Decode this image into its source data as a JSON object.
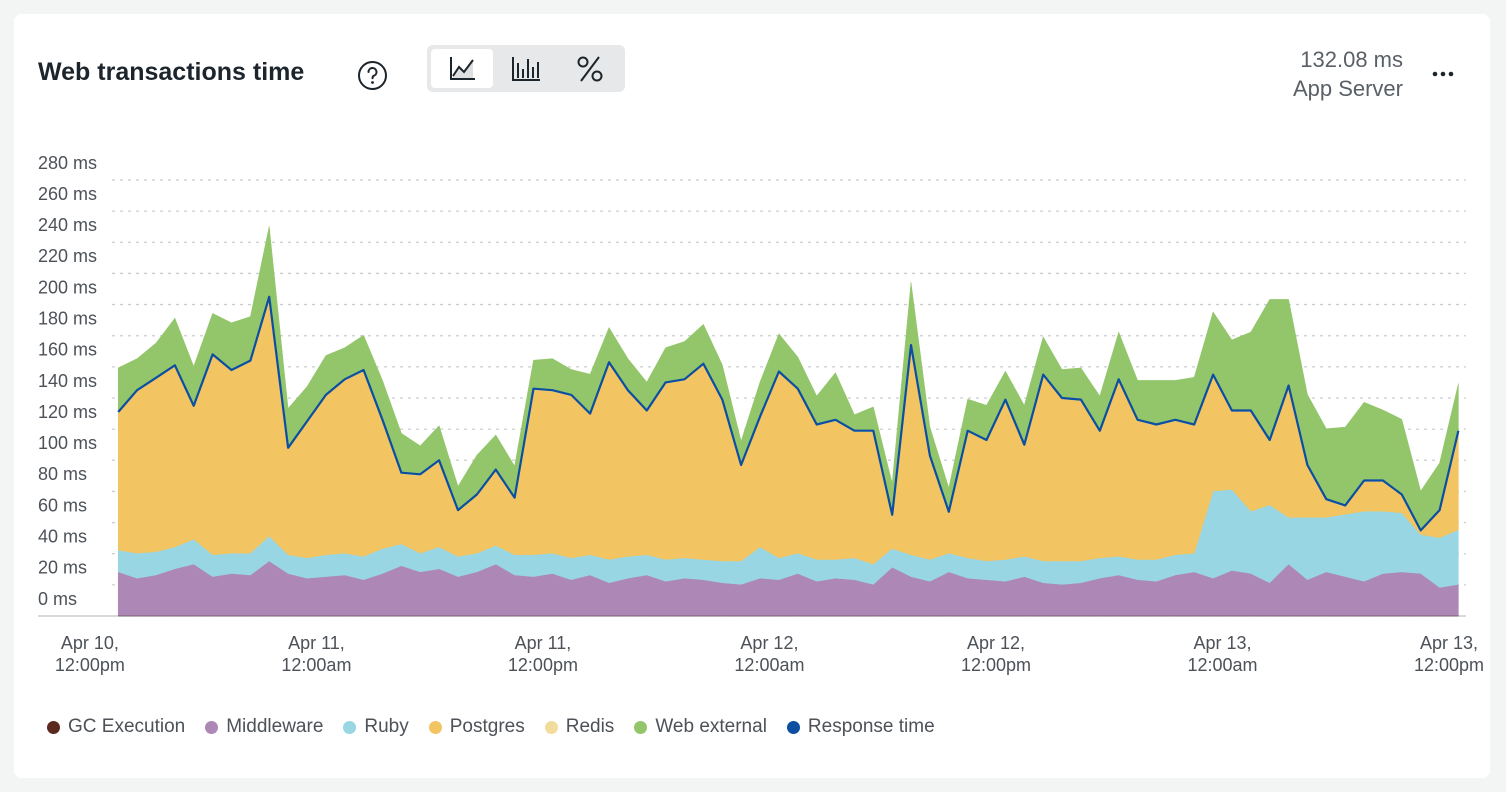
{
  "header": {
    "summary_value": "132.08 ms",
    "summary_label": "App Server"
  },
  "chart_data": {
    "type": "area",
    "stacked": true,
    "title": "Web transactions time",
    "x": [
      1.5,
      2.5,
      3.5,
      4.5,
      5.5,
      6.5,
      7.5,
      8.5,
      9.5,
      10.5,
      11.5,
      12.5,
      13.5,
      14.5,
      15.5,
      16.5,
      17.5,
      18.5,
      19.5,
      20.5,
      21.5,
      22.5,
      23.5,
      24.5,
      25.5,
      26.5,
      27.5,
      28.5,
      29.5,
      30.5,
      31.5,
      32.5,
      33.5,
      34.5,
      35.5,
      36.5,
      37.5,
      38.5,
      39.5,
      40.5,
      41.5,
      42.5,
      43.5,
      44.5,
      45.5,
      46.5,
      47.5,
      48.5,
      49.5,
      50.5,
      51.5,
      52.5,
      53.5,
      54.5,
      55.5,
      56.5,
      57.5,
      58.5,
      59.5,
      60.5,
      61.5,
      62.5,
      63.5,
      64.5,
      65.5,
      66.5,
      67.5,
      68.5,
      69.5,
      70.5,
      71.5,
      72.5
    ],
    "xlim": [
      -2.75,
      72.9
    ],
    "xticks": [
      {
        "value": 0,
        "label": "Apr 10, 12:00pm"
      },
      {
        "value": 12,
        "label": "Apr 11, 12:00am"
      },
      {
        "value": 24,
        "label": "Apr 11, 12:00pm"
      },
      {
        "value": 36,
        "label": "Apr 12, 12:00am"
      },
      {
        "value": 48,
        "label": "Apr 12, 12:00pm"
      },
      {
        "value": 60,
        "label": "Apr 13, 12:00am"
      },
      {
        "value": 72,
        "label": "Apr 13, 12:00pm"
      }
    ],
    "ylim": [
      0,
      280
    ],
    "yticks": [
      {
        "value": 0,
        "label": "0 ms"
      },
      {
        "value": 20,
        "label": "20 ms"
      },
      {
        "value": 40,
        "label": "40 ms"
      },
      {
        "value": 60,
        "label": "60 ms"
      },
      {
        "value": 80,
        "label": "80 ms"
      },
      {
        "value": 100,
        "label": "100 ms"
      },
      {
        "value": 120,
        "label": "120 ms"
      },
      {
        "value": 140,
        "label": "140 ms"
      },
      {
        "value": 160,
        "label": "160 ms"
      },
      {
        "value": 180,
        "label": "180 ms"
      },
      {
        "value": 200,
        "label": "200 ms"
      },
      {
        "value": 220,
        "label": "220 ms"
      },
      {
        "value": 240,
        "label": "240 ms"
      },
      {
        "value": 260,
        "label": "260 ms"
      },
      {
        "value": 280,
        "label": "280 ms"
      }
    ],
    "grid": true,
    "series": [
      {
        "name": "GC Execution",
        "color": "#5b2a1f",
        "values": [
          0.3,
          0.3,
          0.3,
          0.3,
          0.3,
          0.3,
          0.3,
          0.3,
          0.3,
          0.3,
          0.3,
          0.3,
          0.3,
          0.3,
          0.3,
          0.3,
          0.3,
          0.3,
          0.3,
          0.3,
          0.3,
          0.3,
          0.3,
          0.3,
          0.3,
          0.3,
          0.3,
          0.3,
          0.3,
          0.3,
          0.3,
          0.3,
          0.3,
          0.3,
          0.3,
          0.3,
          0.3,
          0.3,
          0.3,
          0.3,
          0.3,
          0.3,
          0.3,
          0.3,
          0.3,
          0.3,
          0.3,
          0.3,
          0.3,
          0.3,
          0.3,
          0.3,
          0.3,
          0.3,
          0.3,
          0.3,
          0.3,
          0.3,
          0.3,
          0.3,
          0.3,
          0.3,
          0.3,
          0.3,
          0.3,
          0.3,
          0.3,
          0.3,
          0.3,
          0.3,
          0.3,
          0.3
        ]
      },
      {
        "name": "Middleware",
        "color": "#ad88b6",
        "values": [
          28,
          24,
          26,
          30,
          33,
          25,
          27,
          26,
          35,
          27,
          24,
          25,
          26,
          23,
          27,
          32,
          28,
          30,
          25,
          28,
          33,
          26,
          25,
          27,
          23,
          26,
          21,
          24,
          26,
          22,
          24,
          23,
          21,
          20,
          24,
          23,
          27,
          22,
          24,
          23,
          20,
          31,
          25,
          22,
          28,
          24,
          23,
          22,
          25,
          21,
          20,
          21,
          24,
          26,
          23,
          22,
          26,
          28,
          24,
          29,
          27,
          21,
          33,
          23,
          28,
          25,
          22,
          27,
          28,
          27,
          18,
          20
        ]
      },
      {
        "name": "Ruby",
        "color": "#98d6e4",
        "values": [
          14,
          16,
          15,
          14,
          16,
          14,
          13,
          14,
          16,
          12,
          13,
          14,
          14,
          15,
          16,
          14,
          12,
          14,
          13,
          12,
          12,
          13,
          14,
          13,
          14,
          13,
          15,
          14,
          13,
          14,
          13,
          13,
          14,
          15,
          20,
          14,
          13,
          14,
          12,
          14,
          13,
          12,
          14,
          14,
          12,
          13,
          12,
          14,
          13,
          14,
          15,
          14,
          13,
          12,
          13,
          14,
          13,
          12,
          56,
          52,
          40,
          50,
          30,
          40,
          35,
          40,
          45,
          40,
          38,
          25,
          32,
          35
        ]
      },
      {
        "name": "Postgres",
        "color": "#f2c462",
        "values": [
          88,
          104,
          111,
          116,
          85,
          128,
          117,
          123,
          153,
          68,
          87,
          102,
          111,
          119,
          82,
          45,
          50,
          55,
          29,
          37,
          48,
          36,
          106,
          104,
          104,
          90,
          126,
          106,
          92,
          113,
          114,
          125,
          103,
          61,
          83,
          119,
          105,
          86,
          89,
          81,
          85,
          21,
          134,
          66,
          26,
          81,
          77,
          102,
          71,
          119,
          104,
          103,
          81,
          113,
          89,
          86,
          86,
          82,
          74,
          50,
          64,
          41,
          84,
          33,
          11,
          5,
          19,
          19,
          11,
          2,
          17,
          63
        ]
      },
      {
        "name": "Redis",
        "color": "#f1dc9c",
        "values": [
          1,
          1,
          1,
          1,
          1,
          1,
          1,
          1,
          1,
          1,
          1,
          1,
          1,
          1,
          1,
          1,
          1,
          1,
          1,
          1,
          1,
          1,
          1,
          1,
          1,
          1,
          1,
          1,
          1,
          1,
          1,
          1,
          1,
          1,
          1,
          1,
          1,
          1,
          1,
          1,
          1,
          1,
          1,
          1,
          1,
          1,
          1,
          1,
          1,
          1,
          1,
          1,
          1,
          1,
          1,
          1,
          1,
          1,
          1,
          1,
          1,
          1,
          1,
          1,
          1,
          1,
          1,
          1,
          1,
          1,
          1,
          1
        ]
      },
      {
        "name": "Web external",
        "color": "#93c66b",
        "values": [
          28,
          20,
          22,
          30,
          25,
          26,
          30,
          28,
          45,
          25,
          22,
          25,
          20,
          22,
          25,
          25,
          18,
          22,
          15,
          25,
          22,
          20,
          18,
          20,
          16,
          25,
          22,
          20,
          18,
          22,
          24,
          25,
          22,
          15,
          22,
          24,
          20,
          18,
          30,
          10,
          15,
          20,
          40,
          18,
          15,
          20,
          22,
          18,
          25,
          24,
          18,
          20,
          22,
          30,
          25,
          28,
          25,
          30,
          40,
          45,
          50,
          90,
          55,
          45,
          45,
          50,
          50,
          45,
          48,
          25,
          30,
          30
        ]
      },
      {
        "name": "Response time",
        "color": "#0b4ea2",
        "kind": "line",
        "values": [
          131,
          145,
          153,
          161,
          135,
          168,
          158,
          164,
          205,
          108,
          125,
          142,
          152,
          158,
          126,
          92,
          91,
          100,
          68,
          78,
          94,
          76,
          146,
          145,
          142,
          130,
          163,
          145,
          132,
          150,
          152,
          162,
          139,
          97,
          128,
          157,
          146,
          123,
          126,
          119,
          119,
          65,
          174,
          103,
          67,
          119,
          113,
          139,
          110,
          155,
          140,
          139,
          119,
          152,
          126,
          123,
          126,
          123,
          155,
          132,
          132,
          113,
          148,
          97,
          75,
          71,
          87,
          87,
          78,
          55,
          68,
          119
        ]
      }
    ]
  }
}
